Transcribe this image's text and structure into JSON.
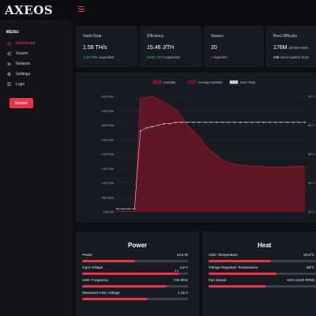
{
  "app": {
    "logo_text": "AXEOS"
  },
  "sidebar": {
    "menu_title": "MENU",
    "items": [
      {
        "label": "Dashboard",
        "icon": "gauge-icon",
        "active": true
      },
      {
        "label": "Swarm",
        "icon": "share-icon",
        "active": false
      },
      {
        "label": "Network",
        "icon": "wifi-icon",
        "active": false
      },
      {
        "label": "Settings",
        "icon": "gear-icon",
        "active": false
      },
      {
        "label": "Logs",
        "icon": "list-icon",
        "active": false
      }
    ],
    "restart_label": "Restart"
  },
  "stats": {
    "hashrate": {
      "label": "Hash Rate",
      "value": "1.58 TH/s",
      "sub_value": "1.40 TH/s",
      "sub_text": "expected"
    },
    "efficiency": {
      "label": "Efficiency",
      "value": "15.46 J/TH",
      "sub_value": "18.57 J/TH",
      "sub_text": "expected"
    },
    "shares": {
      "label": "Shares",
      "value": "20",
      "sub_value": "0",
      "sub_text": "rejected"
    },
    "best_difficulty": {
      "label": "Best Difficulty",
      "value": "176M",
      "value_suffix": "all-time best",
      "sub_value": "24k",
      "sub_text": "since system boot"
    }
  },
  "chart_data": {
    "type": "area",
    "legend": [
      "Hashrate",
      "Average Hashrate",
      "ASIC Temp"
    ],
    "legend_position": "top-center",
    "y_left_ticks": [
      "4.00 TH/s",
      "3.50 TH/s",
      "3.00 TH/s",
      "2.50 TH/s",
      "2.00 TH/s",
      "1.50 TH/s",
      "1.00 TH/s",
      "500 GH/s",
      "0.00 H/s"
    ],
    "y_left_range": [
      0,
      4
    ],
    "y_right_ticks": [
      "70 °C",
      "",
      "60 °C",
      "",
      "50 °C",
      "",
      "40 °C",
      "",
      "30 °C"
    ],
    "y_right_range": [
      30,
      70
    ],
    "series": [
      {
        "name": "Hashrate",
        "color": "#6b1424",
        "values": [
          0.02,
          0.02,
          0.02,
          0.02,
          3.95,
          3.95,
          4.0,
          3.9,
          3.8,
          3.7,
          3.55,
          3.3,
          3.0,
          2.8,
          2.6,
          2.3,
          2.1,
          1.95,
          1.8,
          1.7,
          1.65,
          1.62,
          1.6,
          1.58,
          1.57,
          1.56,
          1.55,
          1.55,
          1.55,
          1.55,
          1.56,
          1.57,
          1.58
        ]
      },
      {
        "name": "ASIC Temp",
        "color": "#c8c8cc",
        "values": [
          31,
          31,
          31,
          31,
          58,
          59,
          59.5,
          60,
          60.5,
          60.5,
          61,
          61,
          61,
          61,
          61,
          61,
          61,
          61,
          61,
          61,
          61,
          61,
          61,
          61,
          61,
          61,
          61,
          61,
          61,
          61,
          61,
          61,
          61
        ]
      }
    ],
    "colors": {
      "hashrate_fill": "#6b1424",
      "hashrate_line": "#9a1e33",
      "avg_legend": "#5a1020",
      "temp_line": "#c8c8cc"
    }
  },
  "power": {
    "title": "Power",
    "metrics": [
      {
        "label": "Power",
        "value": "24.5 W",
        "fill": 0.5
      },
      {
        "label": "Input Voltage",
        "value": "4.9 V",
        "fill": 0.92,
        "marker_label": "5.0"
      },
      {
        "label": "ASIC Frequency",
        "value": "725 MHz",
        "fill": 0.8
      },
      {
        "label": "Measured ASIC Voltage",
        "value": "1.15 V",
        "fill": 0.62
      }
    ]
  },
  "heat": {
    "title": "Heat",
    "metrics": [
      {
        "label": "ASIC Temperature",
        "value": "52.6°C",
        "fill": 0.55
      },
      {
        "label": "Voltage Regulator Temperature",
        "value": "58°C",
        "fill": 0.6
      },
      {
        "label": "Fan Speed",
        "value": "51% (3418 RPM)",
        "fill": 0.51
      }
    ]
  },
  "accent_color": "#e8334a"
}
